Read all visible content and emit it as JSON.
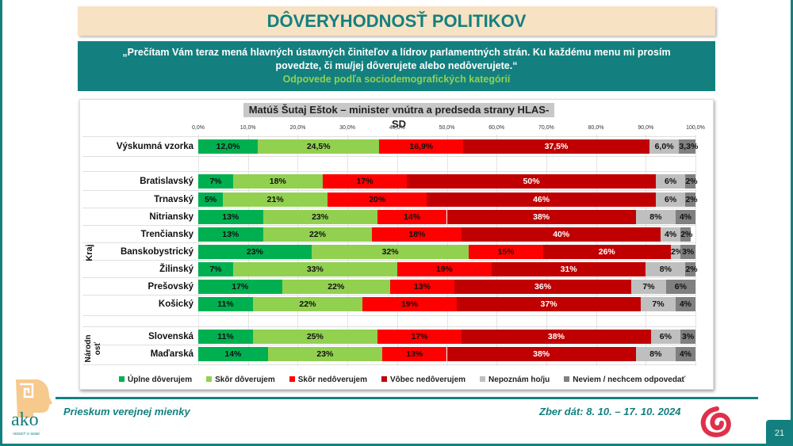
{
  "header": {
    "title": "DÔVERYHODNOSŤ POLITIKOV",
    "question": "„Prečítam Vám teraz mená hlavných ústavných činiteľov a lídrov parlamentných strán. Ku každému menu mi prosím povedzte, či mu/jej dôverujete alebo nedôverujete.“",
    "subtitle": "Odpovede podľa sociodemografických kategórií"
  },
  "footer": {
    "left": "Prieskum verejnej mienky",
    "right": "Zber dát: 8. 10. – 17. 10. 2024",
    "page": "21",
    "logo_text": "ako",
    "logo_tagline": "VEDIEŤ O SEBE"
  },
  "chart_data": {
    "type": "bar",
    "orientation": "horizontal",
    "stacked": true,
    "title": "Matúš Šutaj Eštok – minister vnútra a predseda strany HLAS-SD",
    "xlim": [
      0,
      100
    ],
    "grid": true,
    "legend_position": "bottom",
    "ticks": [
      "0,0%",
      "10,0%",
      "20,0%",
      "30,0%",
      "40,0%",
      "50,0%",
      "60,0%",
      "70,0%",
      "80,0%",
      "90,0%",
      "100,0%"
    ],
    "series": [
      {
        "name": "Úplne dôverujem",
        "color": "#00b050"
      },
      {
        "name": "Skôr dôverujem",
        "color": "#92d050"
      },
      {
        "name": "Skôr nedôverujem",
        "color": "#ff0000"
      },
      {
        "name": "Vôbec nedôverujem",
        "color": "#c00000"
      },
      {
        "name": "Nepoznám ho/ju",
        "color": "#bfbfbf"
      },
      {
        "name": "Neviem / nechcem odpovedať",
        "color": "#808080"
      }
    ],
    "groups": [
      {
        "label": "",
        "rows": [
          {
            "label": "Výskumná vzorka",
            "values": [
              12.0,
              24.5,
              16.9,
              37.5,
              6.0,
              3.3
            ],
            "labels": [
              "12,0%",
              "24,5%",
              "16,9%",
              "37,5%",
              "6,0%",
              "3,3%"
            ]
          }
        ]
      },
      {
        "label": "Kraj",
        "rows": [
          {
            "label": "Bratislavský",
            "values": [
              7,
              18,
              17,
              50,
              6,
              2
            ]
          },
          {
            "label": "Trnavský",
            "values": [
              5,
              21,
              20,
              46,
              6,
              2
            ]
          },
          {
            "label": "Nitriansky",
            "values": [
              13,
              23,
              14,
              38,
              8,
              4
            ]
          },
          {
            "label": "Trenčiansky",
            "values": [
              13,
              22,
              18,
              40,
              4,
              2
            ]
          },
          {
            "label": "Banskobystrický",
            "values": [
              23,
              32,
              15,
              26,
              2,
              3
            ]
          },
          {
            "label": "Žilinský",
            "values": [
              7,
              33,
              19,
              31,
              8,
              2
            ]
          },
          {
            "label": "Prešovský",
            "values": [
              17,
              22,
              13,
              36,
              7,
              6
            ]
          },
          {
            "label": "Košický",
            "values": [
              11,
              22,
              19,
              37,
              7,
              4
            ]
          }
        ]
      },
      {
        "label": "Národnosť",
        "label_lines": [
          "Národn",
          "osť"
        ],
        "rows": [
          {
            "label": "Slovenská",
            "values": [
              11,
              25,
              17,
              38,
              6,
              3
            ]
          },
          {
            "label": "Maďarská",
            "values": [
              14,
              23,
              13,
              38,
              8,
              4
            ]
          }
        ]
      }
    ]
  }
}
